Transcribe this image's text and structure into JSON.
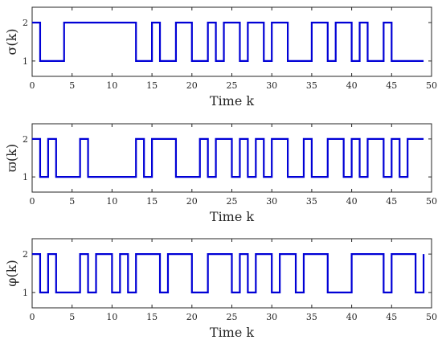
{
  "chart_data": [
    {
      "type": "line",
      "step": true,
      "ylabel": "σ(k)",
      "xlabel": "Time k",
      "xlim": [
        0,
        50
      ],
      "ylim": [
        0.6,
        2.4
      ],
      "xticks": [
        0,
        5,
        10,
        15,
        20,
        25,
        30,
        35,
        40,
        45,
        50
      ],
      "yticks": [
        1,
        2
      ],
      "grid": false,
      "x_end": 49,
      "series": [
        {
          "color": "#0000d6",
          "transitions": [
            [
              0,
              2
            ],
            [
              1,
              1
            ],
            [
              4,
              2
            ],
            [
              13,
              1
            ],
            [
              15,
              2
            ],
            [
              16,
              1
            ],
            [
              18,
              2
            ],
            [
              20,
              1
            ],
            [
              22,
              2
            ],
            [
              23,
              1
            ],
            [
              24,
              2
            ],
            [
              26,
              1
            ],
            [
              27,
              2
            ],
            [
              29,
              1
            ],
            [
              30,
              2
            ],
            [
              32,
              1
            ],
            [
              35,
              2
            ],
            [
              37,
              1
            ],
            [
              38,
              2
            ],
            [
              40,
              1
            ],
            [
              41,
              2
            ],
            [
              42,
              1
            ],
            [
              44,
              2
            ],
            [
              45,
              1
            ],
            [
              47,
              1
            ]
          ]
        }
      ]
    },
    {
      "type": "line",
      "step": true,
      "ylabel": "ϖ(k)",
      "xlabel": "Time k",
      "xlim": [
        0,
        50
      ],
      "ylim": [
        0.6,
        2.4
      ],
      "xticks": [
        0,
        5,
        10,
        15,
        20,
        25,
        30,
        35,
        40,
        45,
        50
      ],
      "yticks": [
        1,
        2
      ],
      "grid": false,
      "x_end": 49,
      "series": [
        {
          "color": "#0000d6",
          "transitions": [
            [
              0,
              2
            ],
            [
              1,
              1
            ],
            [
              2,
              2
            ],
            [
              3,
              1
            ],
            [
              6,
              2
            ],
            [
              7,
              1
            ],
            [
              13,
              2
            ],
            [
              14,
              1
            ],
            [
              15,
              2
            ],
            [
              18,
              1
            ],
            [
              21,
              2
            ],
            [
              22,
              1
            ],
            [
              23,
              2
            ],
            [
              25,
              1
            ],
            [
              26,
              2
            ],
            [
              27,
              1
            ],
            [
              28,
              2
            ],
            [
              29,
              1
            ],
            [
              30,
              2
            ],
            [
              32,
              1
            ],
            [
              34,
              2
            ],
            [
              35,
              1
            ],
            [
              37,
              2
            ],
            [
              39,
              1
            ],
            [
              40,
              2
            ],
            [
              41,
              1
            ],
            [
              42,
              2
            ],
            [
              44,
              1
            ],
            [
              45,
              2
            ],
            [
              46,
              1
            ],
            [
              47,
              2
            ]
          ]
        }
      ]
    },
    {
      "type": "line",
      "step": true,
      "ylabel": "φ(k)",
      "xlabel": "Time k",
      "xlim": [
        0,
        50
      ],
      "ylim": [
        0.6,
        2.4
      ],
      "xticks": [
        0,
        5,
        10,
        15,
        20,
        25,
        30,
        35,
        40,
        45,
        50
      ],
      "yticks": [
        1,
        2
      ],
      "grid": false,
      "x_end": 49,
      "series": [
        {
          "color": "#0000d6",
          "transitions": [
            [
              0,
              2
            ],
            [
              1,
              1
            ],
            [
              2,
              2
            ],
            [
              3,
              1
            ],
            [
              6,
              2
            ],
            [
              7,
              1
            ],
            [
              8,
              2
            ],
            [
              10,
              1
            ],
            [
              11,
              2
            ],
            [
              12,
              1
            ],
            [
              13,
              2
            ],
            [
              16,
              1
            ],
            [
              17,
              2
            ],
            [
              20,
              1
            ],
            [
              22,
              2
            ],
            [
              25,
              1
            ],
            [
              26,
              2
            ],
            [
              27,
              1
            ],
            [
              28,
              2
            ],
            [
              30,
              1
            ],
            [
              31,
              2
            ],
            [
              33,
              1
            ],
            [
              34,
              2
            ],
            [
              37,
              1
            ],
            [
              40,
              2
            ],
            [
              44,
              1
            ],
            [
              45,
              2
            ],
            [
              48,
              1
            ],
            [
              49,
              2
            ]
          ]
        }
      ]
    }
  ]
}
